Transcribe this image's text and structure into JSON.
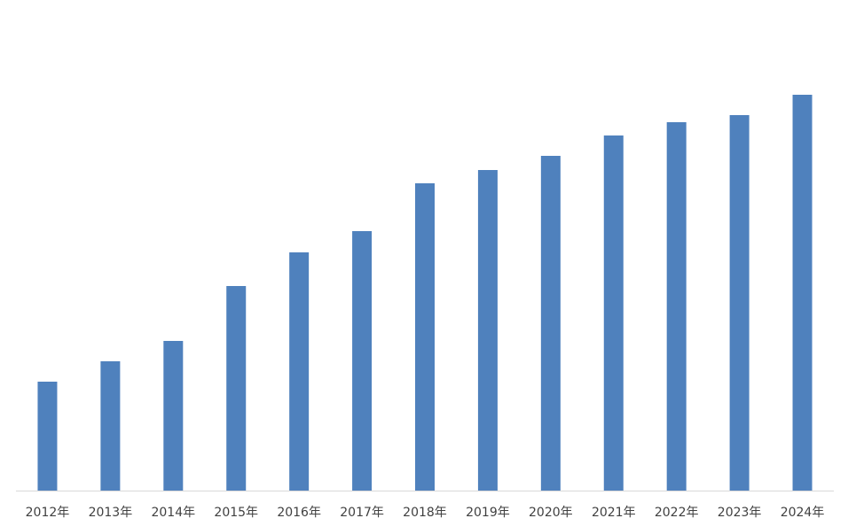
{
  "chart_data": {
    "type": "bar",
    "categories": [
      "2012年",
      "2013年",
      "2014年",
      "2015年",
      "2016年",
      "2017年",
      "2018年",
      "2019年",
      "2020年",
      "2021年",
      "2022年",
      "2023年",
      "2024年"
    ],
    "values": [
      123,
      146,
      169,
      231,
      269,
      293,
      347,
      362,
      378,
      401,
      416,
      424,
      447
    ],
    "color": "#4f81bd",
    "ylim": [
      0,
      500
    ]
  }
}
